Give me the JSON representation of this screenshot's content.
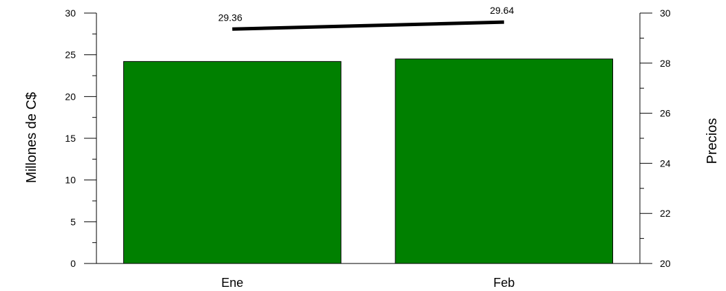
{
  "chart_data": {
    "type": "bar",
    "categories": [
      "Ene",
      "Feb"
    ],
    "series": [
      {
        "type": "bar",
        "axis": "left",
        "values": [
          24.2,
          24.5
        ],
        "color": "#008000"
      },
      {
        "type": "line",
        "axis": "right",
        "values": [
          29.36,
          29.64
        ],
        "labels": [
          "29.36",
          "29.64"
        ],
        "color": "#000000"
      }
    ],
    "ylabel": "Millones de C$",
    "y2label": "Precios",
    "ylim": [
      0,
      30
    ],
    "y2lim": [
      20,
      30
    ],
    "yticks": [
      0,
      5,
      10,
      15,
      20,
      25,
      30
    ],
    "y2ticks": [
      20,
      22,
      24,
      26,
      28,
      30
    ],
    "grid": false,
    "legend": "none"
  }
}
